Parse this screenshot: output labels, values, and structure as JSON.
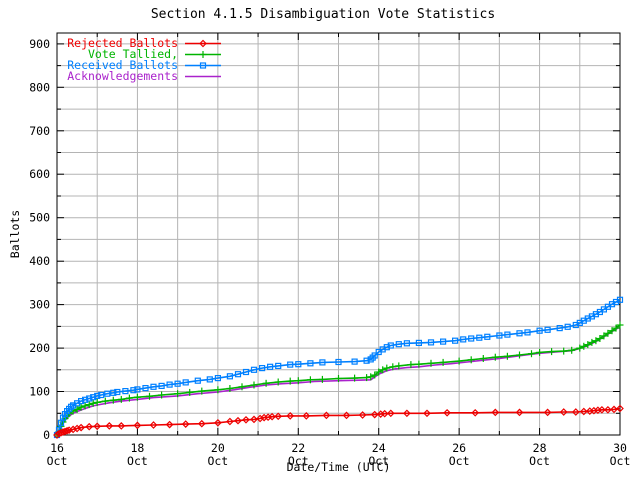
{
  "title": "Section 4.1.5 Disambiguation Vote Statistics",
  "chart_data": {
    "type": "line",
    "title": "Section 4.1.5 Disambiguation Vote Statistics",
    "xlabel": "Date/Time (UTC)",
    "ylabel": "Ballots",
    "xlim_days_october": [
      16,
      30
    ],
    "ylim": [
      0,
      925
    ],
    "grid": {
      "shown": true,
      "x_interval_days": 1,
      "y_interval_units": 50,
      "color": "#b4b4b4"
    },
    "legend_position": "top-left-inside",
    "axis_color": "#000000",
    "y_ticks_major": [
      0,
      100,
      200,
      300,
      400,
      500,
      600,
      700,
      800,
      900
    ],
    "y_tick_labels": [
      "0",
      "100",
      "200",
      "300",
      "400",
      "500",
      "600",
      "700",
      "800",
      "900"
    ],
    "y_minor_tick_interval": 50,
    "x_ticks_major_days": [
      16,
      18,
      20,
      22,
      24,
      26,
      28,
      30
    ],
    "x_tick_labels": [
      {
        "day": "16",
        "month": "Oct"
      },
      {
        "day": "18",
        "month": "Oct"
      },
      {
        "day": "20",
        "month": "Oct"
      },
      {
        "day": "22",
        "month": "Oct"
      },
      {
        "day": "24",
        "month": "Oct"
      },
      {
        "day": "26",
        "month": "Oct"
      },
      {
        "day": "28",
        "month": "Oct"
      },
      {
        "day": "30",
        "month": "Oct"
      }
    ],
    "x_minor_tick_interval_days": 1,
    "series": [
      {
        "name": "Rejected Ballots",
        "color": "#ee0000",
        "marker": "diamond",
        "points": [
          [
            16.0,
            0
          ],
          [
            16.05,
            3
          ],
          [
            16.1,
            5
          ],
          [
            16.15,
            7
          ],
          [
            16.2,
            8
          ],
          [
            16.25,
            10
          ],
          [
            16.3,
            11
          ],
          [
            16.4,
            13
          ],
          [
            16.5,
            15
          ],
          [
            16.6,
            17
          ],
          [
            16.8,
            19
          ],
          [
            17.0,
            20
          ],
          [
            17.3,
            21
          ],
          [
            17.6,
            21
          ],
          [
            18.0,
            22
          ],
          [
            18.4,
            23
          ],
          [
            18.8,
            24
          ],
          [
            19.2,
            25
          ],
          [
            19.6,
            26
          ],
          [
            20.0,
            28
          ],
          [
            20.3,
            31
          ],
          [
            20.5,
            33
          ],
          [
            20.7,
            35
          ],
          [
            20.9,
            36
          ],
          [
            21.05,
            38
          ],
          [
            21.15,
            40
          ],
          [
            21.25,
            41
          ],
          [
            21.35,
            42
          ],
          [
            21.5,
            43
          ],
          [
            21.8,
            44
          ],
          [
            22.2,
            44
          ],
          [
            22.7,
            45
          ],
          [
            23.2,
            45
          ],
          [
            23.6,
            46
          ],
          [
            23.9,
            47
          ],
          [
            24.05,
            48
          ],
          [
            24.15,
            49
          ],
          [
            24.3,
            50
          ],
          [
            24.7,
            50
          ],
          [
            25.2,
            50
          ],
          [
            25.7,
            51
          ],
          [
            26.4,
            51
          ],
          [
            26.9,
            52
          ],
          [
            27.5,
            52
          ],
          [
            28.2,
            52
          ],
          [
            28.6,
            53
          ],
          [
            28.9,
            53
          ],
          [
            29.1,
            54
          ],
          [
            29.25,
            55
          ],
          [
            29.35,
            56
          ],
          [
            29.45,
            57
          ],
          [
            29.55,
            58
          ],
          [
            29.7,
            58
          ],
          [
            29.85,
            59
          ],
          [
            30.0,
            61
          ]
        ]
      },
      {
        "name": "Vote Tallied,",
        "color": "#00b400",
        "marker": "plus",
        "points": [
          [
            16.0,
            0
          ],
          [
            16.05,
            8
          ],
          [
            16.1,
            20
          ],
          [
            16.15,
            30
          ],
          [
            16.2,
            38
          ],
          [
            16.25,
            44
          ],
          [
            16.3,
            49
          ],
          [
            16.4,
            55
          ],
          [
            16.5,
            59
          ],
          [
            16.6,
            64
          ],
          [
            16.7,
            67
          ],
          [
            16.8,
            70
          ],
          [
            16.9,
            73
          ],
          [
            17.0,
            75
          ],
          [
            17.2,
            78
          ],
          [
            17.4,
            80
          ],
          [
            17.6,
            82
          ],
          [
            17.8,
            85
          ],
          [
            18.0,
            87
          ],
          [
            18.3,
            89
          ],
          [
            18.6,
            92
          ],
          [
            19.0,
            95
          ],
          [
            19.3,
            98
          ],
          [
            19.6,
            101
          ],
          [
            20.0,
            104
          ],
          [
            20.3,
            107
          ],
          [
            20.6,
            111
          ],
          [
            20.9,
            115
          ],
          [
            21.2,
            119
          ],
          [
            21.5,
            122
          ],
          [
            21.8,
            124
          ],
          [
            22.0,
            125
          ],
          [
            22.3,
            127
          ],
          [
            22.6,
            128
          ],
          [
            23.0,
            130
          ],
          [
            23.4,
            131
          ],
          [
            23.7,
            132
          ],
          [
            23.8,
            134
          ],
          [
            23.9,
            138
          ],
          [
            24.0,
            145
          ],
          [
            24.1,
            150
          ],
          [
            24.2,
            154
          ],
          [
            24.35,
            157
          ],
          [
            24.5,
            159
          ],
          [
            24.8,
            162
          ],
          [
            25.0,
            163
          ],
          [
            25.3,
            165
          ],
          [
            25.6,
            167
          ],
          [
            26.0,
            170
          ],
          [
            26.3,
            173
          ],
          [
            26.6,
            176
          ],
          [
            26.9,
            179
          ],
          [
            27.2,
            181
          ],
          [
            27.5,
            184
          ],
          [
            27.8,
            187
          ],
          [
            28.0,
            190
          ],
          [
            28.3,
            192
          ],
          [
            28.6,
            193
          ],
          [
            28.8,
            195
          ],
          [
            29.0,
            200
          ],
          [
            29.1,
            204
          ],
          [
            29.2,
            208
          ],
          [
            29.3,
            213
          ],
          [
            29.4,
            217
          ],
          [
            29.5,
            222
          ],
          [
            29.6,
            228
          ],
          [
            29.7,
            234
          ],
          [
            29.8,
            240
          ],
          [
            29.9,
            246
          ],
          [
            30.0,
            253
          ]
        ]
      },
      {
        "name": "Received Ballots",
        "color": "#0080ff",
        "marker": "square",
        "points": [
          [
            16.0,
            0
          ],
          [
            16.05,
            12
          ],
          [
            16.1,
            28
          ],
          [
            16.15,
            40
          ],
          [
            16.2,
            48
          ],
          [
            16.25,
            55
          ],
          [
            16.3,
            60
          ],
          [
            16.35,
            65
          ],
          [
            16.4,
            68
          ],
          [
            16.5,
            73
          ],
          [
            16.6,
            78
          ],
          [
            16.7,
            81
          ],
          [
            16.8,
            84
          ],
          [
            16.9,
            87
          ],
          [
            17.0,
            90
          ],
          [
            17.1,
            92
          ],
          [
            17.25,
            95
          ],
          [
            17.4,
            97
          ],
          [
            17.5,
            99
          ],
          [
            17.7,
            101
          ],
          [
            17.9,
            103
          ],
          [
            18.0,
            105
          ],
          [
            18.2,
            108
          ],
          [
            18.4,
            111
          ],
          [
            18.6,
            113
          ],
          [
            18.8,
            116
          ],
          [
            19.0,
            118
          ],
          [
            19.2,
            121
          ],
          [
            19.5,
            125
          ],
          [
            19.8,
            128
          ],
          [
            20.0,
            131
          ],
          [
            20.3,
            135
          ],
          [
            20.5,
            140
          ],
          [
            20.7,
            145
          ],
          [
            20.9,
            150
          ],
          [
            21.1,
            154
          ],
          [
            21.3,
            157
          ],
          [
            21.5,
            159
          ],
          [
            21.8,
            162
          ],
          [
            22.0,
            163
          ],
          [
            22.3,
            165
          ],
          [
            22.6,
            167
          ],
          [
            23.0,
            168
          ],
          [
            23.4,
            169
          ],
          [
            23.7,
            171
          ],
          [
            23.8,
            174
          ],
          [
            23.85,
            178
          ],
          [
            23.9,
            183
          ],
          [
            24.0,
            191
          ],
          [
            24.1,
            197
          ],
          [
            24.2,
            202
          ],
          [
            24.3,
            206
          ],
          [
            24.5,
            209
          ],
          [
            24.7,
            211
          ],
          [
            25.0,
            212
          ],
          [
            25.3,
            213
          ],
          [
            25.6,
            215
          ],
          [
            25.9,
            217
          ],
          [
            26.1,
            220
          ],
          [
            26.3,
            222
          ],
          [
            26.5,
            224
          ],
          [
            26.7,
            226
          ],
          [
            27.0,
            229
          ],
          [
            27.2,
            231
          ],
          [
            27.5,
            234
          ],
          [
            27.7,
            236
          ],
          [
            28.0,
            240
          ],
          [
            28.2,
            242
          ],
          [
            28.5,
            246
          ],
          [
            28.7,
            249
          ],
          [
            28.9,
            253
          ],
          [
            29.0,
            258
          ],
          [
            29.1,
            263
          ],
          [
            29.2,
            268
          ],
          [
            29.3,
            273
          ],
          [
            29.4,
            278
          ],
          [
            29.5,
            283
          ],
          [
            29.6,
            289
          ],
          [
            29.7,
            295
          ],
          [
            29.8,
            301
          ],
          [
            29.9,
            306
          ],
          [
            30.0,
            311
          ]
        ]
      },
      {
        "name": "Acknowledgements",
        "color": "#aa22cc",
        "marker": "none",
        "points": [
          [
            16.0,
            0
          ],
          [
            16.05,
            6
          ],
          [
            16.1,
            16
          ],
          [
            16.15,
            26
          ],
          [
            16.2,
            34
          ],
          [
            16.3,
            44
          ],
          [
            16.4,
            50
          ],
          [
            16.5,
            54
          ],
          [
            16.7,
            61
          ],
          [
            16.9,
            67
          ],
          [
            17.0,
            69
          ],
          [
            17.3,
            74
          ],
          [
            17.6,
            78
          ],
          [
            18.0,
            82
          ],
          [
            18.4,
            86
          ],
          [
            19.0,
            90
          ],
          [
            19.5,
            95
          ],
          [
            20.0,
            99
          ],
          [
            20.4,
            104
          ],
          [
            20.8,
            110
          ],
          [
            21.2,
            115
          ],
          [
            21.6,
            118
          ],
          [
            22.0,
            120
          ],
          [
            22.4,
            123
          ],
          [
            23.0,
            125
          ],
          [
            23.5,
            126
          ],
          [
            23.8,
            127
          ],
          [
            24.0,
            140
          ],
          [
            24.2,
            148
          ],
          [
            24.4,
            152
          ],
          [
            24.7,
            155
          ],
          [
            25.0,
            157
          ],
          [
            25.4,
            161
          ],
          [
            25.8,
            164
          ],
          [
            26.2,
            168
          ],
          [
            26.6,
            172
          ],
          [
            27.0,
            176
          ],
          [
            27.4,
            181
          ],
          [
            27.8,
            186
          ],
          [
            28.0,
            188
          ],
          [
            28.4,
            191
          ],
          [
            28.8,
            194
          ],
          [
            29.0,
            199
          ],
          [
            29.2,
            206
          ],
          [
            29.4,
            215
          ],
          [
            29.6,
            226
          ],
          [
            29.8,
            238
          ],
          [
            30.0,
            249
          ]
        ]
      }
    ]
  }
}
